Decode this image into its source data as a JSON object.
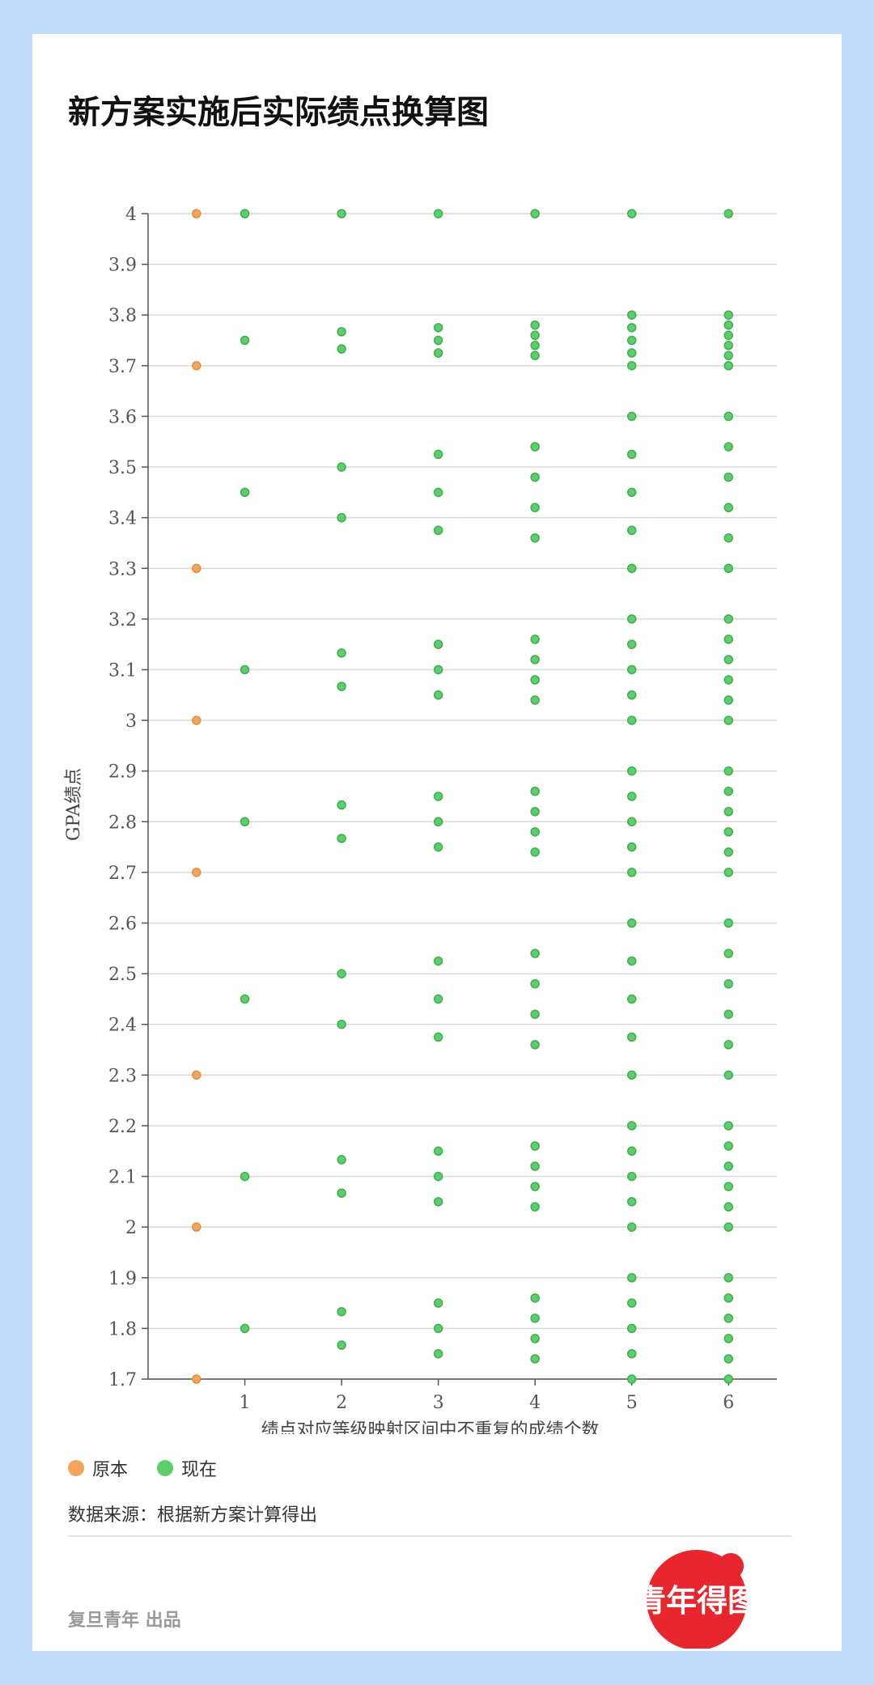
{
  "title": "新方案实施后实际绩点换算图",
  "legend": {
    "original": "原本",
    "current": "现在"
  },
  "source": "数据来源：根据新方案计算得出",
  "credit": "复旦青年 出品",
  "seal_text": "青年得图",
  "colors": {
    "background": "#c2dcfb",
    "original": "#f3a55e",
    "current": "#5ccf6a",
    "seal": "#e8262d"
  },
  "chart_data": {
    "type": "scatter",
    "xlabel": "绩点对应等级映射区间中不重复的成绩个数",
    "ylabel": "GPA绩点",
    "xlim": [
      0,
      6.5
    ],
    "ylim": [
      1.7,
      4.0
    ],
    "x_ticks": [
      "1",
      "2",
      "3",
      "4",
      "5",
      "6"
    ],
    "y_ticks": [
      "4",
      "3.9",
      "3.8",
      "3.7",
      "3.6",
      "3.5",
      "3.4",
      "3.3",
      "3.2",
      "3.1",
      "3",
      "2.9",
      "2.8",
      "2.7",
      "2.6",
      "2.5",
      "2.4",
      "2.3",
      "2.2",
      "2.1",
      "2",
      "1.9",
      "1.8",
      "1.7"
    ],
    "grid": true,
    "legend_position": "bottom-left",
    "series": [
      {
        "name": "原本",
        "points": [
          [
            0.5,
            4.0
          ],
          [
            0.5,
            3.7
          ],
          [
            0.5,
            3.3
          ],
          [
            0.5,
            3.0
          ],
          [
            0.5,
            2.7
          ],
          [
            0.5,
            2.3
          ],
          [
            0.5,
            2.0
          ],
          [
            0.5,
            1.7
          ]
        ]
      },
      {
        "name": "现在",
        "points": [
          [
            1,
            4.0
          ],
          [
            1,
            3.75
          ],
          [
            1,
            3.45
          ],
          [
            1,
            3.1
          ],
          [
            1,
            2.8
          ],
          [
            1,
            2.45
          ],
          [
            1,
            2.1
          ],
          [
            1,
            1.8
          ],
          [
            2,
            4.0
          ],
          [
            2,
            3.767
          ],
          [
            2,
            3.733
          ],
          [
            2,
            3.5
          ],
          [
            2,
            3.4
          ],
          [
            2,
            3.133
          ],
          [
            2,
            3.067
          ],
          [
            2,
            2.833
          ],
          [
            2,
            2.767
          ],
          [
            2,
            2.5
          ],
          [
            2,
            2.4
          ],
          [
            2,
            2.133
          ],
          [
            2,
            2.067
          ],
          [
            2,
            1.833
          ],
          [
            2,
            1.767
          ],
          [
            3,
            4.0
          ],
          [
            3,
            3.775
          ],
          [
            3,
            3.75
          ],
          [
            3,
            3.725
          ],
          [
            3,
            3.525
          ],
          [
            3,
            3.45
          ],
          [
            3,
            3.375
          ],
          [
            3,
            3.15
          ],
          [
            3,
            3.1
          ],
          [
            3,
            3.05
          ],
          [
            3,
            2.85
          ],
          [
            3,
            2.8
          ],
          [
            3,
            2.75
          ],
          [
            3,
            2.525
          ],
          [
            3,
            2.45
          ],
          [
            3,
            2.375
          ],
          [
            3,
            2.15
          ],
          [
            3,
            2.1
          ],
          [
            3,
            2.05
          ],
          [
            3,
            1.85
          ],
          [
            3,
            1.8
          ],
          [
            3,
            1.75
          ],
          [
            4,
            4.0
          ],
          [
            4,
            3.78
          ],
          [
            4,
            3.76
          ],
          [
            4,
            3.74
          ],
          [
            4,
            3.72
          ],
          [
            4,
            3.54
          ],
          [
            4,
            3.48
          ],
          [
            4,
            3.42
          ],
          [
            4,
            3.36
          ],
          [
            4,
            3.16
          ],
          [
            4,
            3.12
          ],
          [
            4,
            3.08
          ],
          [
            4,
            3.04
          ],
          [
            4,
            2.86
          ],
          [
            4,
            2.82
          ],
          [
            4,
            2.78
          ],
          [
            4,
            2.74
          ],
          [
            4,
            2.54
          ],
          [
            4,
            2.48
          ],
          [
            4,
            2.42
          ],
          [
            4,
            2.36
          ],
          [
            4,
            2.16
          ],
          [
            4,
            2.12
          ],
          [
            4,
            2.08
          ],
          [
            4,
            2.04
          ],
          [
            4,
            1.86
          ],
          [
            4,
            1.82
          ],
          [
            4,
            1.78
          ],
          [
            4,
            1.74
          ],
          [
            5,
            4.0
          ],
          [
            5,
            3.8
          ],
          [
            5,
            3.775
          ],
          [
            5,
            3.75
          ],
          [
            5,
            3.725
          ],
          [
            5,
            3.7
          ],
          [
            5,
            3.6
          ],
          [
            5,
            3.525
          ],
          [
            5,
            3.45
          ],
          [
            5,
            3.375
          ],
          [
            5,
            3.3
          ],
          [
            5,
            3.2
          ],
          [
            5,
            3.15
          ],
          [
            5,
            3.1
          ],
          [
            5,
            3.05
          ],
          [
            5,
            3.0
          ],
          [
            5,
            2.9
          ],
          [
            5,
            2.85
          ],
          [
            5,
            2.8
          ],
          [
            5,
            2.75
          ],
          [
            5,
            2.7
          ],
          [
            5,
            2.6
          ],
          [
            5,
            2.525
          ],
          [
            5,
            2.45
          ],
          [
            5,
            2.375
          ],
          [
            5,
            2.3
          ],
          [
            5,
            2.2
          ],
          [
            5,
            2.15
          ],
          [
            5,
            2.1
          ],
          [
            5,
            2.05
          ],
          [
            5,
            2.0
          ],
          [
            5,
            1.9
          ],
          [
            5,
            1.85
          ],
          [
            5,
            1.8
          ],
          [
            5,
            1.75
          ],
          [
            5,
            1.7
          ],
          [
            6,
            4.0
          ],
          [
            6,
            3.8
          ],
          [
            6,
            3.78
          ],
          [
            6,
            3.76
          ],
          [
            6,
            3.74
          ],
          [
            6,
            3.72
          ],
          [
            6,
            3.7
          ],
          [
            6,
            3.6
          ],
          [
            6,
            3.54
          ],
          [
            6,
            3.48
          ],
          [
            6,
            3.42
          ],
          [
            6,
            3.36
          ],
          [
            6,
            3.3
          ],
          [
            6,
            3.2
          ],
          [
            6,
            3.16
          ],
          [
            6,
            3.12
          ],
          [
            6,
            3.08
          ],
          [
            6,
            3.04
          ],
          [
            6,
            3.0
          ],
          [
            6,
            2.9
          ],
          [
            6,
            2.86
          ],
          [
            6,
            2.82
          ],
          [
            6,
            2.78
          ],
          [
            6,
            2.74
          ],
          [
            6,
            2.7
          ],
          [
            6,
            2.6
          ],
          [
            6,
            2.54
          ],
          [
            6,
            2.48
          ],
          [
            6,
            2.42
          ],
          [
            6,
            2.36
          ],
          [
            6,
            2.3
          ],
          [
            6,
            2.2
          ],
          [
            6,
            2.16
          ],
          [
            6,
            2.12
          ],
          [
            6,
            2.08
          ],
          [
            6,
            2.04
          ],
          [
            6,
            2.0
          ],
          [
            6,
            1.9
          ],
          [
            6,
            1.86
          ],
          [
            6,
            1.82
          ],
          [
            6,
            1.78
          ],
          [
            6,
            1.74
          ],
          [
            6,
            1.7
          ]
        ]
      }
    ]
  }
}
